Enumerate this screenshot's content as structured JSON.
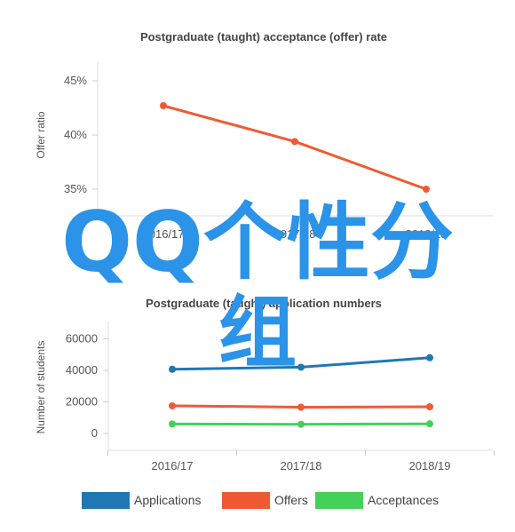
{
  "chart_data": [
    {
      "type": "line",
      "title": "Postgraduate (taught) acceptance (offer) rate",
      "ylabel": "Offer ratio",
      "xlabel": "",
      "categories": [
        "2016/17",
        "2017/18",
        "2018/19"
      ],
      "y_ticks": [
        "35%",
        "40%",
        "45%"
      ],
      "ylim": [
        34.5,
        46.5
      ],
      "grid": false,
      "series": [
        {
          "values": [
            42.7,
            39.4,
            35.0
          ],
          "color": "#f05a33"
        }
      ]
    },
    {
      "type": "line",
      "title": "Postgraduate (taught) application numbers",
      "ylabel": "Number of students",
      "xlabel": "",
      "categories": [
        "2016/17",
        "2017/18",
        "2018/19"
      ],
      "y_ticks": [
        "0",
        "20000",
        "40000",
        "60000"
      ],
      "ylim": [
        -10000,
        65000
      ],
      "grid": false,
      "legend": "bottom",
      "series": [
        {
          "name": "Applications",
          "values": [
            40700,
            42000,
            48000
          ],
          "color": "#1f78b4"
        },
        {
          "name": "Offers",
          "values": [
            17500,
            16600,
            16900
          ],
          "color": "#f05a33"
        },
        {
          "name": "Acceptances",
          "values": [
            6000,
            5800,
            6100
          ],
          "color": "#45d05a"
        }
      ]
    }
  ],
  "watermark": {
    "line1": "QQ个性分",
    "line2": "组",
    "color": "#2b93e8"
  }
}
